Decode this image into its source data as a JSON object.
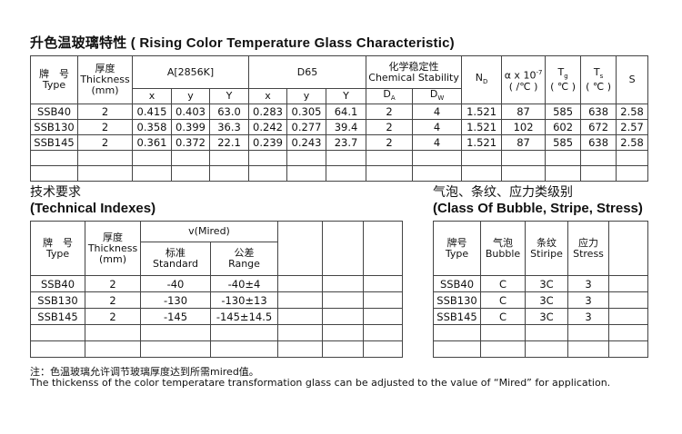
{
  "title": "升色温玻璃特性 ( Rising Color Temperature Glass Characteristic)",
  "table1": {
    "h_type_cn": "牌　号",
    "h_type": "Type",
    "h_thick_cn": "厚度",
    "h_thick": "Thickness",
    "h_thick_unit": "(mm)",
    "h_a": "A[2856K]",
    "h_d65": "D65",
    "h_chem_cn": "化学稳定性",
    "h_chem": "Chemical Stability",
    "h_nd": "N",
    "h_nd_sub": "D",
    "h_alpha": "α x 10",
    "h_alpha_sup": "-7",
    "h_alpha_unit": "( /℃ )",
    "h_tg": "T",
    "h_tg_sub": "g",
    "h_tg_unit": "( ℃ )",
    "h_ts": "T",
    "h_ts_sub": "s",
    "h_ts_unit": "( ℃ )",
    "h_s": "S",
    "sub_x": "x",
    "sub_y": "y",
    "sub_Y": "Y",
    "h_da": "D",
    "h_da_sub": "A",
    "h_dw": "D",
    "h_dw_sub": "W",
    "rows": [
      [
        "SSB40",
        "2",
        "0.415",
        "0.403",
        "63.0",
        "0.283",
        "0.305",
        "64.1",
        "2",
        "4",
        "1.521",
        "87",
        "585",
        "638",
        "2.58"
      ],
      [
        "SSB130",
        "2",
        "0.358",
        "0.399",
        "36.3",
        "0.242",
        "0.277",
        "39.4",
        "2",
        "4",
        "1.521",
        "102",
        "602",
        "672",
        "2.57"
      ],
      [
        "SSB145",
        "2",
        "0.361",
        "0.372",
        "22.1",
        "0.239",
        "0.243",
        "23.7",
        "2",
        "4",
        "1.521",
        "87",
        "585",
        "638",
        "2.58"
      ]
    ]
  },
  "table2": {
    "title_cn": "技术要求",
    "title": "(Technical Indexes)",
    "h_type_cn": "牌　号",
    "h_type": "Type",
    "h_thick_cn": "厚度",
    "h_thick": "Thickness",
    "h_thick_unit": "(mm)",
    "h_mired": "v(Mired)",
    "h_std_cn": "标准",
    "h_std": "Standard",
    "h_range_cn": "公差",
    "h_range": "Range",
    "rows": [
      [
        "SSB40",
        "2",
        "-40",
        "-40±4"
      ],
      [
        "SSB130",
        "2",
        "-130",
        "-130±13"
      ],
      [
        "SSB145",
        "2",
        "-145",
        "-145±14.5"
      ]
    ]
  },
  "table3": {
    "title_cn": "气泡、条纹、应力类级别",
    "title": "(Class Of Bubble, Stripe, Stress)",
    "h_type_cn": "牌号",
    "h_type": "Type",
    "h_bubble_cn": "气泡",
    "h_bubble": "Bubble",
    "h_stripe_cn": "条纹",
    "h_stripe": "Stiripe",
    "h_stress_cn": "应力",
    "h_stress": "Stress",
    "rows": [
      [
        "SSB40",
        "C",
        "3C",
        "3"
      ],
      [
        "SSB130",
        "C",
        "3C",
        "3"
      ],
      [
        "SSB145",
        "C",
        "3C",
        "3"
      ]
    ]
  },
  "note_cn": "注：色温玻璃允许调节玻璃厚度达到所需mired值。",
  "note_en": "The thickenss of the color temperatare transformation glass can be adjusted to the value of  “Mired”  for application."
}
